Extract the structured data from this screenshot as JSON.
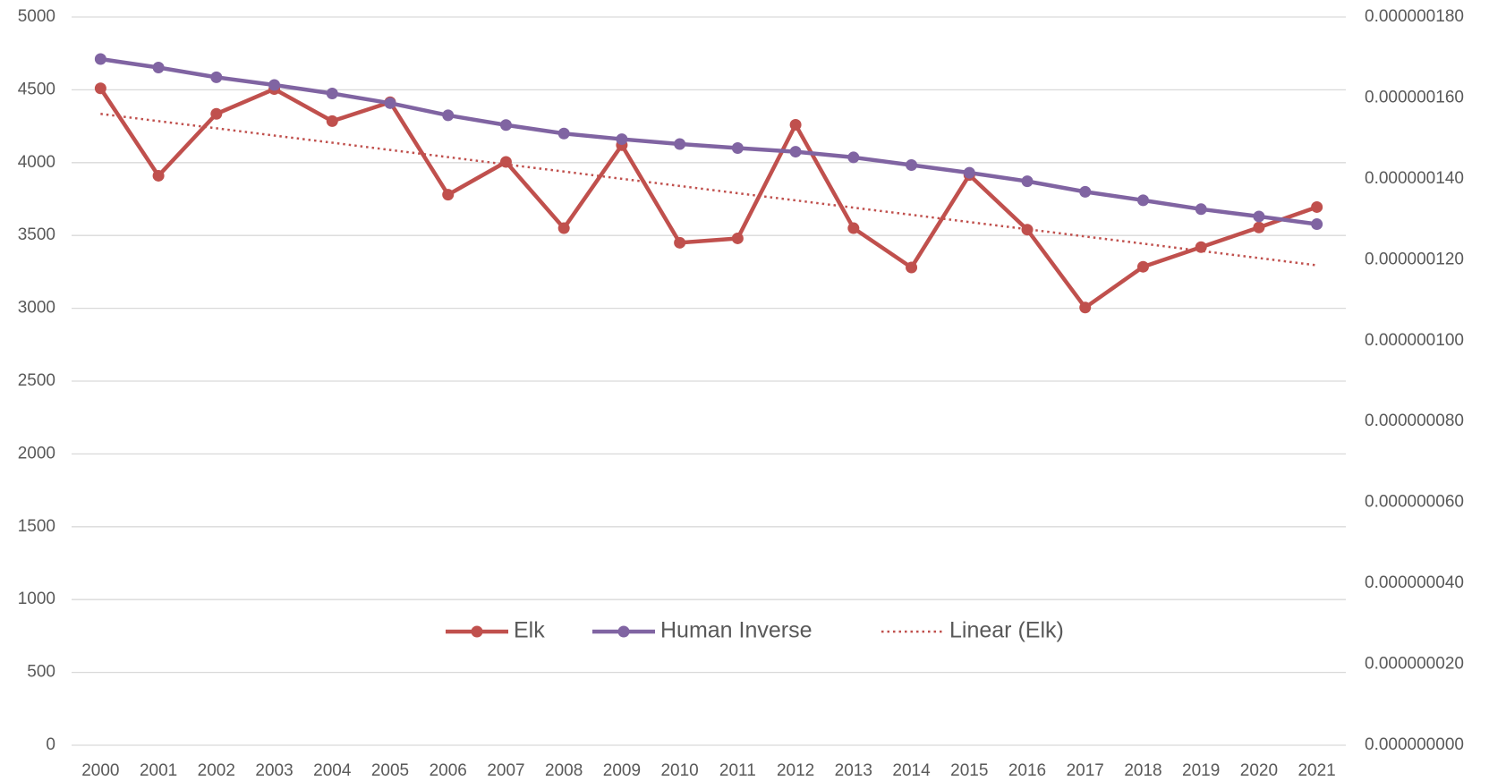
{
  "chart_data": {
    "type": "line",
    "categories": [
      "2000",
      "2001",
      "2002",
      "2003",
      "2004",
      "2005",
      "2006",
      "2007",
      "2008",
      "2009",
      "2010",
      "2011",
      "2012",
      "2013",
      "2014",
      "2015",
      "2016",
      "2017",
      "2018",
      "2019",
      "2020",
      "2021"
    ],
    "series": [
      {
        "name": "Elk",
        "color": "#c0504d",
        "axis": "y",
        "style": "solid",
        "markers": true,
        "values": [
          4510,
          3910,
          4335,
          4505,
          4285,
          4415,
          3780,
          4005,
          3550,
          4120,
          3450,
          3480,
          4260,
          3550,
          3280,
          3915,
          3540,
          3005,
          3285,
          3420,
          3555,
          3695
        ]
      },
      {
        "name": "Human Inverse",
        "color": "#8064a2",
        "axis": "y2",
        "style": "solid",
        "markers": true,
        "values": [
          1.696e-07,
          1.675e-07,
          1.651e-07,
          1.632e-07,
          1.611e-07,
          1.587e-07,
          1.557e-07,
          1.533e-07,
          1.512e-07,
          1.498e-07,
          1.486e-07,
          1.476e-07,
          1.467e-07,
          1.453e-07,
          1.434e-07,
          1.415e-07,
          1.394e-07,
          1.368e-07,
          1.347e-07,
          1.325e-07,
          1.307e-07,
          1.288e-07
        ]
      },
      {
        "name": "Linear (Elk)",
        "color": "#c0504d",
        "axis": "y",
        "style": "dotted",
        "markers": false,
        "values": [
          4335,
          4285,
          4236,
          4186,
          4137,
          4087,
          4038,
          3988,
          3939,
          3889,
          3840,
          3790,
          3741,
          3691,
          3642,
          3592,
          3543,
          3493,
          3444,
          3394,
          3345,
          3295
        ]
      }
    ],
    "ylim": [
      0,
      5000
    ],
    "yticks": [
      0,
      500,
      1000,
      1500,
      2000,
      2500,
      3000,
      3500,
      4000,
      4500,
      5000
    ],
    "y2lim": [
      0,
      1.8e-07
    ],
    "y2ticks": [
      {
        "value": 0,
        "label": "0.000000000"
      },
      {
        "value": 2e-08,
        "label": "0.000000020"
      },
      {
        "value": 4e-08,
        "label": "0.000000040"
      },
      {
        "value": 6e-08,
        "label": "0.000000060"
      },
      {
        "value": 8e-08,
        "label": "0.000000080"
      },
      {
        "value": 1e-07,
        "label": "0.000000100"
      },
      {
        "value": 1.2e-07,
        "label": "0.000000120"
      },
      {
        "value": 1.4e-07,
        "label": "0.000000140"
      },
      {
        "value": 1.6e-07,
        "label": "0.000000160"
      },
      {
        "value": 1.8e-07,
        "label": "0.000000180"
      }
    ],
    "grid": true,
    "legend": "center"
  }
}
